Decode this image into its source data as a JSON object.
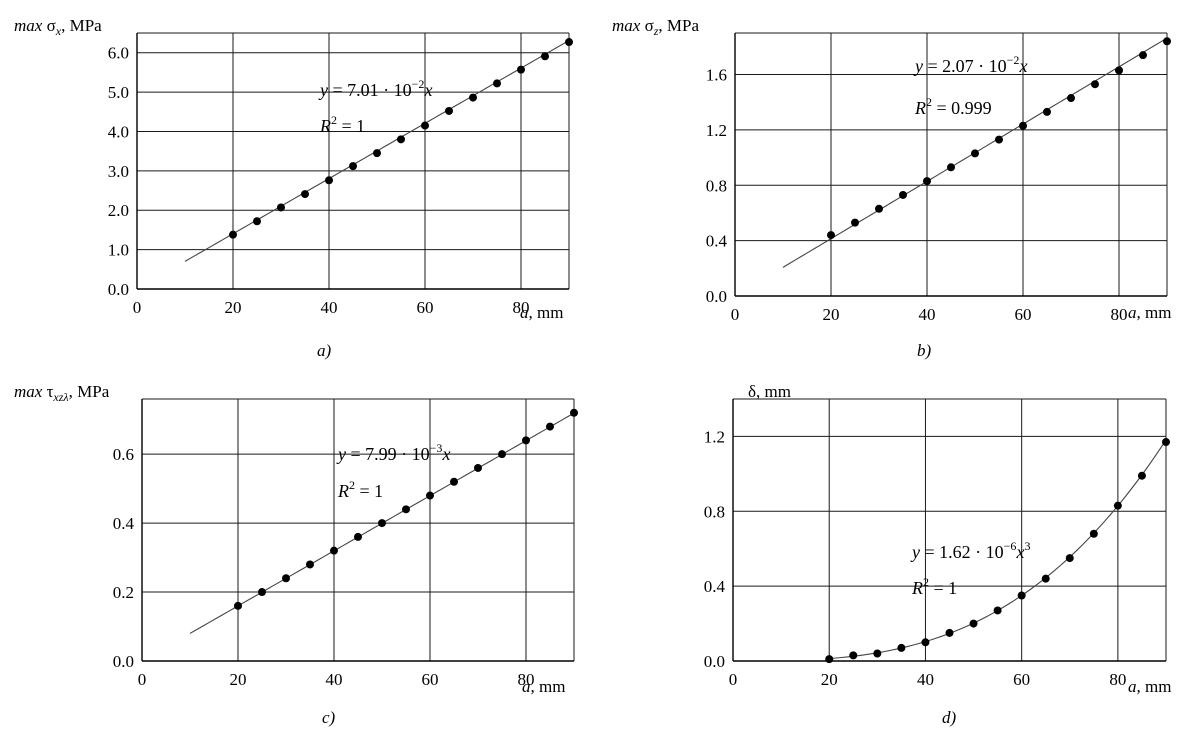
{
  "chart_data": [
    {
      "type": "scatter",
      "ylabel": {
        "prefix": "max",
        "symbol": "σ",
        "sub": "x",
        "unit": ", MPa"
      },
      "xlabel": {
        "symbol": "a",
        "unit": ", mm"
      },
      "xlim": [
        0,
        90
      ],
      "ylim": [
        0,
        6.5
      ],
      "xticks": [
        0,
        20,
        40,
        60,
        80
      ],
      "yticks": [
        0.0,
        1.0,
        2.0,
        3.0,
        4.0,
        5.0,
        6.0
      ],
      "ytick_labels": [
        "0.0",
        "1.0",
        "2.0",
        "3.0",
        "4.0",
        "5.0",
        "6.0"
      ],
      "grid": true,
      "points": {
        "x": [
          20,
          25,
          30,
          35,
          40,
          45,
          50,
          55,
          60,
          65,
          70,
          75,
          80,
          85,
          90
        ],
        "y": [
          1.38,
          1.72,
          2.07,
          2.41,
          2.76,
          3.12,
          3.45,
          3.8,
          4.15,
          4.52,
          4.86,
          5.22,
          5.57,
          5.91,
          6.27
        ]
      },
      "trendline": {
        "kind": "linear",
        "coef": 0.0701,
        "x_range": [
          10,
          90
        ]
      },
      "equation": {
        "lhs": "y",
        "eq": " = 7.01 · 10",
        "exp": "−2",
        "var": "x",
        "var_exp": ""
      },
      "r2": {
        "r": "R",
        "exp": "2",
        "value": " = 1"
      },
      "caption": "a)"
    },
    {
      "type": "scatter",
      "ylabel": {
        "prefix": "max",
        "symbol": "σ",
        "sub": "z",
        "unit": ", MPa"
      },
      "xlabel": {
        "symbol": "a",
        "unit": ", mm"
      },
      "xlim": [
        0,
        90
      ],
      "ylim": [
        0,
        1.9
      ],
      "xticks": [
        0,
        20,
        40,
        60,
        80
      ],
      "yticks": [
        0.0,
        0.4,
        0.8,
        1.2,
        1.6
      ],
      "ytick_labels": [
        "0.0",
        "0.4",
        "0.8",
        "1.2",
        "1.6"
      ],
      "grid": true,
      "points": {
        "x": [
          20,
          25,
          30,
          35,
          40,
          45,
          50,
          55,
          60,
          65,
          70,
          75,
          80,
          85,
          90
        ],
        "y": [
          0.44,
          0.53,
          0.63,
          0.73,
          0.83,
          0.93,
          1.03,
          1.13,
          1.23,
          1.33,
          1.43,
          1.53,
          1.63,
          1.74,
          1.84
        ]
      },
      "trendline": {
        "kind": "linear",
        "coef": 0.0207,
        "x_range": [
          10,
          90
        ]
      },
      "equation": {
        "lhs": "y",
        "eq": " = 2.07 · 10",
        "exp": "−2",
        "var": "x",
        "var_exp": ""
      },
      "r2": {
        "r": "R",
        "exp": "2",
        "value": " = 0.999"
      },
      "caption": "b)"
    },
    {
      "type": "scatter",
      "ylabel": {
        "prefix": "max",
        "symbol": "τ",
        "sub": "xzλ",
        "unit": ", MPa"
      },
      "xlabel": {
        "symbol": "a",
        "unit": ", mm"
      },
      "xlim": [
        0,
        90
      ],
      "ylim": [
        0,
        0.76
      ],
      "xticks": [
        0,
        20,
        40,
        60,
        80
      ],
      "yticks": [
        0.0,
        0.2,
        0.4,
        0.6
      ],
      "ytick_labels": [
        "0.0",
        "0.2",
        "0.4",
        "0.6"
      ],
      "grid": true,
      "points": {
        "x": [
          20,
          25,
          30,
          35,
          40,
          45,
          50,
          55,
          60,
          65,
          70,
          75,
          80,
          85,
          90
        ],
        "y": [
          0.16,
          0.2,
          0.24,
          0.28,
          0.32,
          0.36,
          0.4,
          0.44,
          0.48,
          0.52,
          0.56,
          0.6,
          0.64,
          0.68,
          0.72
        ]
      },
      "trendline": {
        "kind": "linear",
        "coef": 0.00799,
        "x_range": [
          10,
          90
        ]
      },
      "equation": {
        "lhs": "y",
        "eq": " = 7.99 · 10",
        "exp": "−3",
        "var": "x",
        "var_exp": ""
      },
      "r2": {
        "r": "R",
        "exp": "2",
        "value": " = 1"
      },
      "caption": "c)"
    },
    {
      "type": "scatter",
      "ylabel": {
        "prefix": "",
        "symbol": "δ",
        "sub": "",
        "unit": ", mm"
      },
      "xlabel": {
        "symbol": "a",
        "unit": ", mm"
      },
      "xlim": [
        0,
        90
      ],
      "ylim": [
        0,
        1.4
      ],
      "xticks": [
        0,
        20,
        40,
        60,
        80
      ],
      "yticks": [
        0.0,
        0.4,
        0.8,
        1.2
      ],
      "ytick_labels": [
        "0.0",
        "0.4",
        "0.8",
        "1.2"
      ],
      "grid": true,
      "points": {
        "x": [
          20,
          25,
          30,
          35,
          40,
          45,
          50,
          55,
          60,
          65,
          70,
          75,
          80,
          85,
          90
        ],
        "y": [
          0.01,
          0.03,
          0.04,
          0.07,
          0.1,
          0.15,
          0.2,
          0.27,
          0.35,
          0.44,
          0.55,
          0.68,
          0.83,
          0.99,
          1.17
        ]
      },
      "trendline": {
        "kind": "cubic",
        "coef": 1.62e-06,
        "x_range": [
          20,
          90
        ]
      },
      "equation": {
        "lhs": "y",
        "eq": " = 1.62 · 10",
        "exp": "−6",
        "var": "x",
        "var_exp": "3"
      },
      "r2": {
        "r": "R",
        "exp": "2",
        "value": " = 1"
      },
      "caption": "d)"
    }
  ]
}
